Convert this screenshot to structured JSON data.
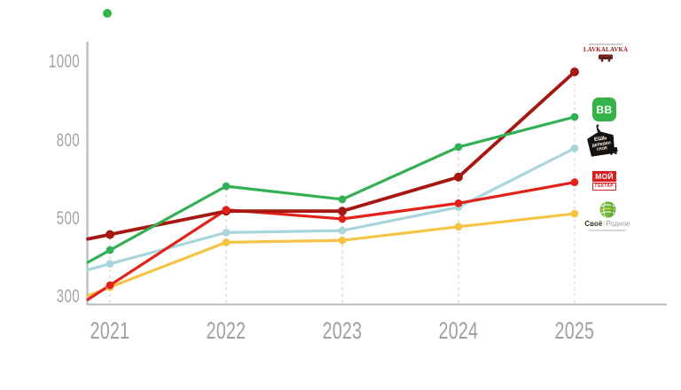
{
  "chart_data": {
    "type": "line",
    "title": "",
    "x_labels": [
      "2021",
      "2022",
      "2023",
      "2024",
      "2025"
    ],
    "x": [
      2021,
      2022,
      2023,
      2024,
      2025
    ],
    "y_axis": {
      "tick_labels": [
        "1000",
        "800",
        "500",
        "300"
      ],
      "ticks": [
        1000,
        800,
        500,
        300
      ],
      "note": "ticks equally spaced visually despite unequal value steps",
      "grid": "dashed vertical line at each year"
    },
    "series": [
      {
        "id": "lavkalavka",
        "name": "LavkaLavka",
        "color": "#A51710",
        "values": [
          460,
          530,
          530,
          660,
          975
        ]
      },
      {
        "id": "vkusvill",
        "name": "ВкусВилл (ВВ)",
        "color": "#33AF54",
        "values": [
          420,
          625,
          575,
          775,
          860
        ]
      },
      {
        "id": "esh",
        "name": "Ешь Деревенское",
        "color": "#A9D6DB",
        "values": [
          385,
          465,
          470,
          545,
          770
        ]
      },
      {
        "id": "gektar",
        "name": "Мой Гектар",
        "color": "#E2221A",
        "values": [
          330,
          535,
          500,
          560,
          640
        ]
      },
      {
        "id": "svoe",
        "name": "Своё Родное",
        "color": "#F5C445",
        "values": [
          325,
          440,
          445,
          480,
          520
        ]
      }
    ],
    "legend_position": "right, logos aligned with 2025 endpoints"
  },
  "axis_colors": {
    "axis": "#B4BABD",
    "grid_dash": "#CDD1D3",
    "label": "#9B9FA2"
  },
  "decoration": {
    "stray_dot_color": "#35B34A"
  },
  "legend": {
    "lavkalavka": {
      "name_text": "LAVKALAVKA"
    },
    "vkusvill": {
      "logo_text": "ВВ",
      "bg": "#35B34A"
    },
    "esh": {
      "line1": "ЕШЬ",
      "line2": "ДЕРЕВЕН",
      "line3": "СКОЕ"
    },
    "gektar": {
      "top_text": "МОЙ",
      "bottom_text": "ГЕКТАР"
    },
    "svoe": {
      "left_text": "Своё",
      "separator": "|",
      "right_text": "Родное"
    }
  }
}
